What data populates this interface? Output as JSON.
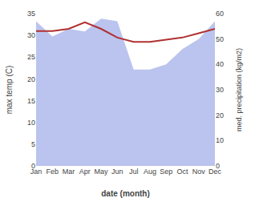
{
  "chart_data": {
    "type": "line",
    "xlabel": "date (month)",
    "ylabel": "max temp (C)",
    "y2label": "med. precipitation (kg/m2)",
    "categories": [
      "Jan",
      "Feb",
      "Mar",
      "Apr",
      "May",
      "Jun",
      "Jul",
      "Aug",
      "Sep",
      "Oct",
      "Nov",
      "Dec"
    ],
    "series": [
      {
        "type": "line",
        "color": "#b03030",
        "values": [
          31.0,
          31.0,
          31.5,
          33.0,
          31.5,
          29.5,
          28.5,
          28.5,
          29.0,
          29.5,
          30.5,
          31.5
        ]
      },
      {
        "type": "area",
        "color": "#bbc4ee",
        "axis": "y2",
        "values": [
          57,
          51,
          54,
          53,
          58,
          57,
          38,
          38,
          40,
          46,
          50,
          57
        ]
      }
    ],
    "ylim": [
      0,
      35
    ],
    "yticks": [
      0,
      5,
      10,
      15,
      20,
      25,
      30,
      35
    ],
    "y2lim": [
      0,
      60
    ],
    "y2ticks": [
      0,
      10,
      20,
      30,
      40,
      50,
      60
    ],
    "grid": false
  }
}
